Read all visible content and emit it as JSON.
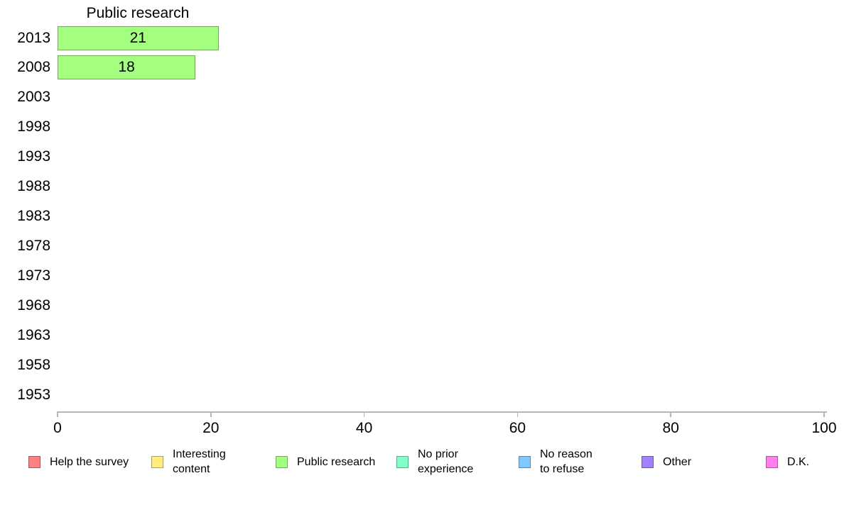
{
  "chart_data": {
    "type": "bar",
    "orientation": "horizontal",
    "title": "Public research",
    "categories": [
      "2013",
      "2008",
      "2003",
      "1998",
      "1993",
      "1988",
      "1983",
      "1978",
      "1973",
      "1968",
      "1963",
      "1958",
      "1953"
    ],
    "values": [
      21,
      18,
      null,
      null,
      null,
      null,
      null,
      null,
      null,
      null,
      null,
      null,
      null
    ],
    "bar_color": "#A4FF80",
    "xlabel": "",
    "ylabel": "",
    "xlim": [
      0,
      100
    ],
    "x_ticks": [
      0,
      20,
      40,
      60,
      80,
      100
    ],
    "grid": false,
    "axis_color": "#b6b6b6",
    "legend_position": "bottom",
    "legend": [
      {
        "label": "Help the survey",
        "color": "#FF8080"
      },
      {
        "label": "Interesting\ncontent",
        "color": "#FFED80"
      },
      {
        "label": "Public research",
        "color": "#A4FF80"
      },
      {
        "label": "No prior\nexperience",
        "color": "#80FFC9"
      },
      {
        "label": "No reason\nto refuse",
        "color": "#80C9FF"
      },
      {
        "label": "Other",
        "color": "#A480FF"
      },
      {
        "label": "D.K.",
        "color": "#FF80ED"
      }
    ]
  }
}
